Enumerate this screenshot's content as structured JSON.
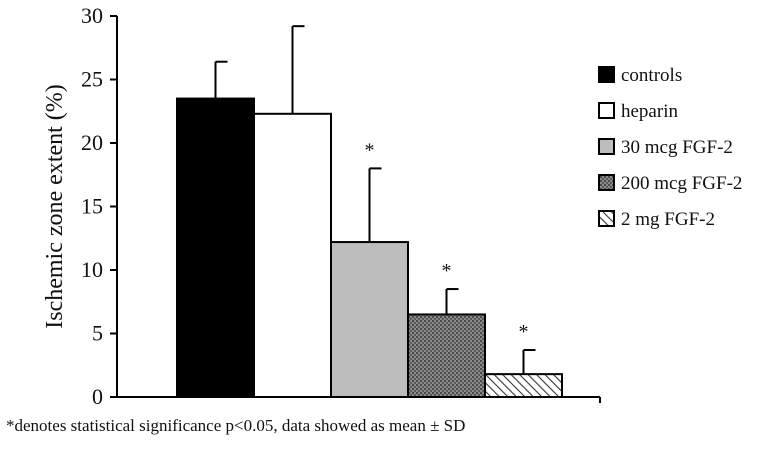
{
  "chart_data": {
    "type": "bar",
    "title": "",
    "xlabel": "",
    "ylabel": "Ischemic zone extent (%)",
    "ylim": [
      0,
      30
    ],
    "yticks": [
      0,
      5,
      10,
      15,
      20,
      25,
      30
    ],
    "grid": false,
    "legend_position": "right",
    "categories": [
      "controls",
      "heparin",
      "30 mcg FGF-2",
      "200 mcg FGF-2",
      "2 mg FGF-2"
    ],
    "values": [
      23.5,
      22.3,
      12.2,
      6.5,
      1.8
    ],
    "errors": [
      2.9,
      6.9,
      5.8,
      2.0,
      1.9
    ],
    "significance": [
      "",
      "",
      "*",
      "*",
      "*"
    ],
    "fills": [
      "#000000",
      "#ffffff",
      "#bdbdbd",
      "#6f6f6f",
      "hatch"
    ]
  },
  "footnote": "*denotes statistical significance p<0.05, data showed as mean ± SD"
}
